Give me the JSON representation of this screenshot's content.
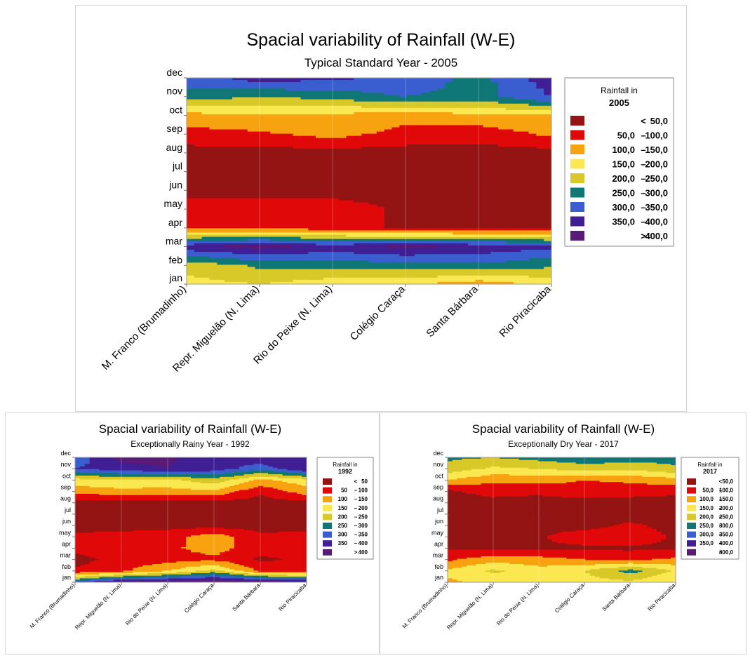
{
  "chart_data": [
    {
      "type": "heatmap",
      "title": "Spacial variability of Rainfall (W-E)",
      "subtitle": "Typical Standard Year - 2005",
      "x_categories": [
        "M. Franco (Brumadinho)",
        "Repr. Miguelão (N. Lima)",
        "Rio do Peixe (N. Lima)",
        "Colégio Caraça",
        "Santa Bárbara",
        "Rio Piracicaba"
      ],
      "y_categories": [
        "jan",
        "feb",
        "mar",
        "apr",
        "may",
        "jun",
        "jul",
        "aug",
        "sep",
        "oct",
        "nov",
        "dec"
      ],
      "legend": {
        "title_line1": "Rainfall in",
        "title_line2": "2005",
        "placement": "right",
        "ranges": [
          {
            "op": "<",
            "low": "",
            "high": "50,0",
            "color": "#931413"
          },
          {
            "op": "–",
            "low": "50,0",
            "high": "100,0",
            "color": "#e00808"
          },
          {
            "op": "–",
            "low": "100,0",
            "high": "150,0",
            "color": "#f7a20f"
          },
          {
            "op": "–",
            "low": "150,0",
            "high": "200,0",
            "color": "#fbe850"
          },
          {
            "op": "–",
            "low": "200,0",
            "high": "250,0",
            "color": "#d8c828"
          },
          {
            "op": "–",
            "low": "250,0",
            "high": "300,0",
            "color": "#0f7775"
          },
          {
            "op": "–",
            "low": "300,0",
            "high": "350,0",
            "color": "#3a5ed0"
          },
          {
            "op": "–",
            "low": "350,0",
            "high": "400,0",
            "color": "#401f94"
          },
          {
            "op": ">",
            "low": "",
            "high": "400,0",
            "color": "#5a1a78"
          }
        ]
      },
      "values_mm": [
        [
          180,
          200,
          170,
          160,
          120,
          170
        ],
        [
          220,
          260,
          270,
          280,
          290,
          260
        ],
        [
          380,
          420,
          380,
          410,
          390,
          360
        ],
        [
          90,
          85,
          70,
          40,
          40,
          40
        ],
        [
          80,
          80,
          75,
          40,
          40,
          40
        ],
        [
          30,
          30,
          30,
          30,
          30,
          30
        ],
        [
          25,
          25,
          25,
          25,
          25,
          25
        ],
        [
          30,
          30,
          30,
          30,
          30,
          30
        ],
        [
          80,
          90,
          120,
          80,
          70,
          110
        ],
        [
          130,
          150,
          140,
          120,
          140,
          150
        ],
        [
          280,
          250,
          270,
          300,
          280,
          350
        ],
        [
          320,
          380,
          360,
          340,
          280,
          380
        ]
      ]
    },
    {
      "type": "heatmap",
      "title": "Spacial variability of Rainfall (W-E)",
      "subtitle": "Exceptionally Rainy Year - 1992",
      "x_categories": [
        "M. Franco (Brumadinho)",
        "Repr. Miguelão (N. Lima)",
        "Rio do Peixe (N. Lima)",
        "Colégio Caraça",
        "Santa Bárbara",
        "Rio Piracicaba"
      ],
      "y_categories": [
        "jan",
        "feb",
        "mar",
        "apr",
        "may",
        "jun",
        "jul",
        "aug",
        "sep",
        "oct",
        "nov",
        "dec"
      ],
      "legend": {
        "title_line1": "Rainfall in",
        "title_line2": "1992",
        "placement": "right",
        "ranges": [
          {
            "op": "<",
            "low": "",
            "high": "50",
            "color": "#931413"
          },
          {
            "op": "–",
            "low": "50",
            "high": "100",
            "color": "#e00808"
          },
          {
            "op": "–",
            "low": "100",
            "high": "150",
            "color": "#f7a20f"
          },
          {
            "op": "–",
            "low": "150",
            "high": "200",
            "color": "#fbe850"
          },
          {
            "op": "–",
            "low": "200",
            "high": "250",
            "color": "#d8c828"
          },
          {
            "op": "–",
            "low": "250",
            "high": "300",
            "color": "#0f7775"
          },
          {
            "op": "–",
            "low": "300",
            "high": "350",
            "color": "#3a5ed0"
          },
          {
            "op": "–",
            "low": "350",
            "high": "400",
            "color": "#401f94"
          },
          {
            "op": ">",
            "low": "",
            "high": "400",
            "color": "#5a1a78"
          }
        ]
      },
      "values_mm": [
        [
          320,
          420,
          430,
          450,
          430,
          410
        ],
        [
          60,
          90,
          150,
          220,
          90,
          60
        ],
        [
          30,
          70,
          80,
          90,
          40,
          60
        ],
        [
          70,
          80,
          90,
          120,
          70,
          80
        ],
        [
          60,
          70,
          80,
          130,
          60,
          70
        ],
        [
          30,
          30,
          30,
          30,
          30,
          30
        ],
        [
          25,
          25,
          25,
          25,
          25,
          25
        ],
        [
          30,
          30,
          30,
          30,
          30,
          30
        ],
        [
          120,
          130,
          130,
          140,
          60,
          130
        ],
        [
          180,
          200,
          190,
          230,
          140,
          180
        ],
        [
          350,
          380,
          400,
          380,
          320,
          400
        ],
        [
          310,
          420,
          410,
          350,
          390,
          380
        ]
      ]
    },
    {
      "type": "heatmap",
      "title": "Spacial variability of Rainfall (W-E)",
      "subtitle": "Exceptionally Dry Year - 2017",
      "x_categories": [
        "M. Franco (Brumadinho)",
        "Repr. Miguelão (N. Lima)",
        "Rio do Peixe (N. Lima)",
        "Colégio Caraça",
        "Santa Bárbara",
        "Rio Piracicaba"
      ],
      "y_categories": [
        "jan",
        "feb",
        "mar",
        "apr",
        "may",
        "jun",
        "jul",
        "aug",
        "sep",
        "oct",
        "nov",
        "dec"
      ],
      "legend": {
        "title_line1": "Rainfall in",
        "title_line2": "2017",
        "placement": "right",
        "ranges": [
          {
            "op": "<",
            "low": "",
            "high": "50,0",
            "color": "#931413"
          },
          {
            "op": "–",
            "low": "50,0",
            "high": "100,0",
            "color": "#e00808"
          },
          {
            "op": "–",
            "low": "100,0",
            "high": "150,0",
            "color": "#f7a20f"
          },
          {
            "op": "–",
            "low": "150,0",
            "high": "200,0",
            "color": "#fbe850"
          },
          {
            "op": "–",
            "low": "200,0",
            "high": "250,0",
            "color": "#d8c828"
          },
          {
            "op": "–",
            "low": "250,0",
            "high": "300,0",
            "color": "#0f7775"
          },
          {
            "op": "–",
            "low": "300,0",
            "high": "350,0",
            "color": "#3a5ed0"
          },
          {
            "op": "–",
            "low": "350,0",
            "high": "400,0",
            "color": "#401f94"
          },
          {
            "op": ">",
            "low": "",
            "high": "400,0",
            "color": "#5a1a78"
          }
        ]
      },
      "values_mm": [
        [
          140,
          170,
          160,
          180,
          190,
          150
        ],
        [
          160,
          210,
          170,
          200,
          270,
          190
        ],
        [
          90,
          130,
          120,
          100,
          90,
          110
        ],
        [
          40,
          40,
          40,
          40,
          40,
          40
        ],
        [
          40,
          40,
          45,
          80,
          90,
          40
        ],
        [
          30,
          30,
          30,
          30,
          60,
          30
        ],
        [
          25,
          25,
          25,
          25,
          25,
          25
        ],
        [
          30,
          30,
          30,
          30,
          30,
          30
        ],
        [
          40,
          70,
          60,
          80,
          70,
          60
        ],
        [
          150,
          110,
          120,
          100,
          110,
          130
        ],
        [
          230,
          190,
          200,
          220,
          210,
          240
        ],
        [
          260,
          250,
          270,
          290,
          280,
          270
        ]
      ]
    }
  ]
}
